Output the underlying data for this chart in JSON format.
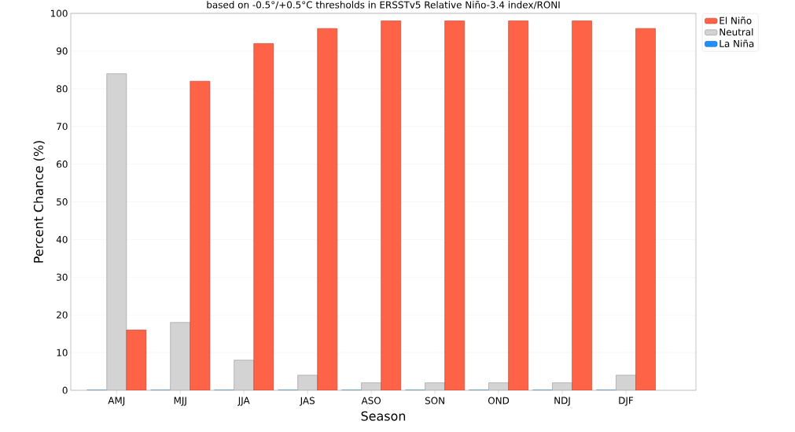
{
  "chart_data": {
    "type": "bar",
    "subtitle": "based on -0.5°/+0.5°C thresholds in ERSSTv5 Relative Niño-3.4 index/RONI",
    "xlabel": "Season",
    "ylabel": "Percent Chance (%)",
    "categories": [
      "AMJ",
      "MJJ",
      "JJA",
      "JAS",
      "ASO",
      "SON",
      "OND",
      "NDJ",
      "DJF"
    ],
    "series": [
      {
        "name": "La Niña",
        "color": "#1e90ff",
        "values": [
          0,
          0,
          0,
          0,
          0,
          0,
          0,
          0,
          0
        ]
      },
      {
        "name": "Neutral",
        "color": "#d3d3d3",
        "values": [
          84,
          18,
          8,
          4,
          2,
          2,
          2,
          2,
          4
        ]
      },
      {
        "name": "El Niño",
        "color": "#ff6347",
        "values": [
          16,
          82,
          92,
          96,
          98,
          98,
          98,
          98,
          96
        ]
      }
    ],
    "ylim": [
      0,
      100
    ],
    "yticks": [
      0,
      10,
      20,
      30,
      40,
      50,
      60,
      70,
      80,
      90,
      100
    ],
    "grid": "y",
    "legend": "top right"
  }
}
